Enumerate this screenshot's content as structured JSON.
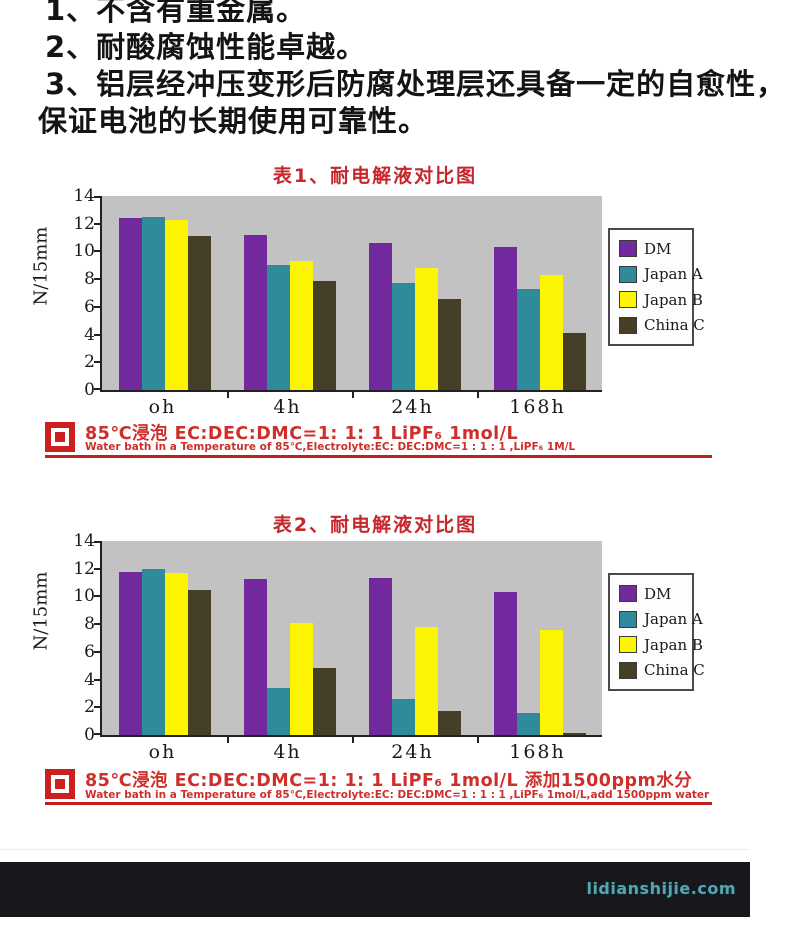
{
  "intro": {
    "line1": "1、不含有重金属。",
    "line2": "2、耐酸腐蚀性能卓越。",
    "line3": "3、铝层经冲压变形后防腐处理层还具备一定的自愈性，",
    "line4": "保证电池的长期使用可靠性。"
  },
  "chart_data": [
    {
      "type": "bar",
      "title": "表1、耐电解液对比图",
      "ylabel": "N/15mm",
      "ylim": [
        0,
        14
      ],
      "yticks": [
        0,
        2,
        4,
        6,
        8,
        10,
        12,
        14
      ],
      "categories": [
        "oh",
        "4h",
        "24h",
        "168h"
      ],
      "series": [
        {
          "name": "DM",
          "color": "#71299d",
          "values": [
            12.4,
            11.2,
            10.6,
            10.3
          ]
        },
        {
          "name": "Japan A",
          "color": "#2f8a9b",
          "values": [
            12.45,
            9.0,
            7.7,
            7.3
          ]
        },
        {
          "name": "Japan B",
          "color": "#fcf402",
          "values": [
            12.3,
            9.3,
            8.8,
            8.3
          ]
        },
        {
          "name": "China C",
          "color": "#453f27",
          "values": [
            11.1,
            7.9,
            6.6,
            4.1
          ]
        }
      ],
      "legend_position": "right",
      "plot_background": "#c2c2c2",
      "grid": false,
      "caption_cn": "85℃浸泡  EC:DEC:DMC=1: 1: 1  LiPF₆  1mol/L",
      "caption_en": "Water bath in a Temperature of 85℃,Electrolyte:EC: DEC:DMC=1 : 1 : 1 ,LiPF₆ 1M/L"
    },
    {
      "type": "bar",
      "title": "表2、耐电解液对比图",
      "ylabel": "N/15mm",
      "ylim": [
        0,
        14
      ],
      "yticks": [
        0,
        2,
        4,
        6,
        8,
        10,
        12,
        14
      ],
      "categories": [
        "oh",
        "4h",
        "24h",
        "168h"
      ],
      "series": [
        {
          "name": "DM",
          "color": "#71299d",
          "values": [
            11.8,
            11.25,
            11.3,
            10.3
          ]
        },
        {
          "name": "Japan A",
          "color": "#2f8a9b",
          "values": [
            12.0,
            3.4,
            2.6,
            1.6
          ]
        },
        {
          "name": "Japan B",
          "color": "#fcf402",
          "values": [
            11.7,
            8.1,
            7.8,
            7.6
          ]
        },
        {
          "name": "China C",
          "color": "#453f27",
          "values": [
            10.45,
            4.85,
            1.75,
            0.15
          ]
        }
      ],
      "legend_position": "right",
      "plot_background": "#c2c2c2",
      "grid": false,
      "caption_cn": "85℃浸泡  EC:DEC:DMC=1: 1: 1  LiPF₆  1mol/L  添加1500ppm水分",
      "caption_en": "Water bath in a Temperature of 85℃,Electrolyte:EC: DEC:DMC=1 : 1 : 1 ,LiPF₆ 1mol/L,add 1500ppm water"
    }
  ],
  "colors": {
    "title_red": "#c5272d",
    "caption_red": "#ce2f2b",
    "rule_red": "#c21e1e",
    "plot_gray": "#c2c2c2",
    "footer_dark": "#17171c",
    "watermark_teal": "#55a5b0"
  },
  "footer": {
    "watermark": "lidianshijie.com"
  }
}
